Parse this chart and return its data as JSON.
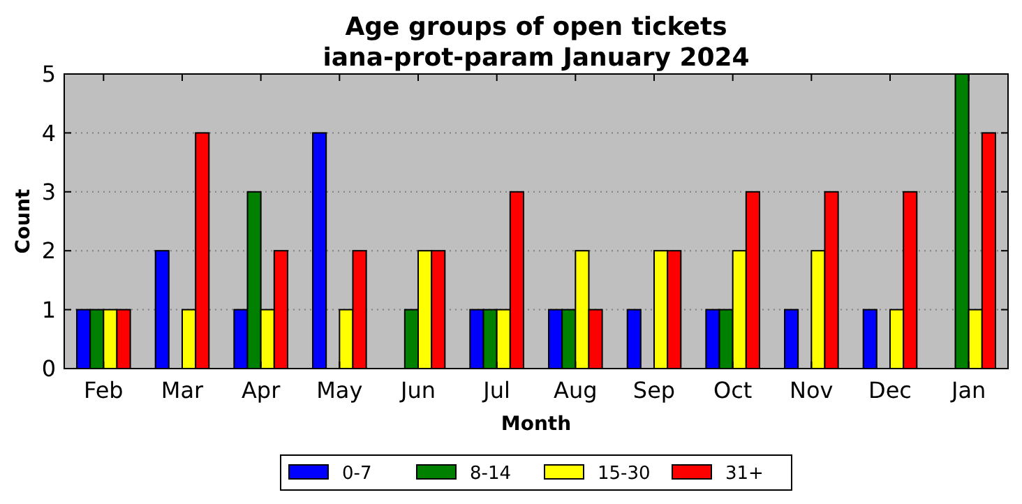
{
  "chart_data": {
    "type": "bar",
    "title": "Age groups of open tickets\niana-prot-param January 2024",
    "xlabel": "Month",
    "ylabel": "Count",
    "categories": [
      "Feb",
      "Mar",
      "Apr",
      "May",
      "Jun",
      "Jul",
      "Aug",
      "Sep",
      "Oct",
      "Nov",
      "Dec",
      "Jan"
    ],
    "series": [
      {
        "name": "0-7",
        "color": "#0000ff",
        "values": [
          1,
          2,
          1,
          4,
          0,
          1,
          1,
          1,
          1,
          1,
          1,
          0
        ]
      },
      {
        "name": "8-14",
        "color": "#008000",
        "values": [
          1,
          0,
          3,
          0,
          1,
          1,
          1,
          0,
          1,
          0,
          0,
          5
        ]
      },
      {
        "name": "15-30",
        "color": "#ffff00",
        "values": [
          1,
          1,
          1,
          1,
          2,
          1,
          2,
          2,
          2,
          2,
          1,
          1
        ]
      },
      {
        "name": "31+",
        "color": "#ff0000",
        "values": [
          1,
          4,
          2,
          2,
          2,
          3,
          1,
          2,
          3,
          3,
          3,
          4
        ]
      }
    ],
    "ylim": [
      0,
      5
    ],
    "yticks": [
      0,
      1,
      2,
      3,
      4,
      5
    ],
    "grid": "y",
    "legend": "bottom"
  }
}
